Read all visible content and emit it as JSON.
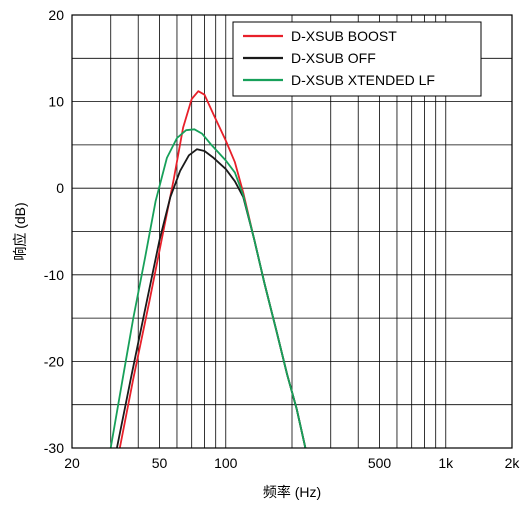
{
  "chart_data": {
    "type": "line",
    "xlabel": "频率 (Hz)",
    "ylabel": "响应 (dB)",
    "x_scale": "log",
    "xlim": [
      20,
      2000
    ],
    "ylim": [
      -30,
      20
    ],
    "grid": true,
    "legend_position": "top-right",
    "x_ticks": [
      {
        "value": 20,
        "label": "20"
      },
      {
        "value": 50,
        "label": "50"
      },
      {
        "value": 100,
        "label": "100"
      },
      {
        "value": 500,
        "label": "500"
      },
      {
        "value": 1000,
        "label": "1k"
      },
      {
        "value": 2000,
        "label": "2k"
      }
    ],
    "y_ticks": [
      {
        "value": 20,
        "label": "20"
      },
      {
        "value": 10,
        "label": "10"
      },
      {
        "value": 0,
        "label": "0"
      },
      {
        "value": -10,
        "label": "-10"
      },
      {
        "value": -20,
        "label": "-20"
      },
      {
        "value": -30,
        "label": "-30"
      }
    ],
    "series": [
      {
        "name": "D-XSUB BOOST",
        "color": "#e8202a",
        "points": [
          [
            33,
            -30
          ],
          [
            38,
            -22
          ],
          [
            45,
            -13
          ],
          [
            52,
            -5
          ],
          [
            58,
            1
          ],
          [
            64,
            7
          ],
          [
            70,
            10.3
          ],
          [
            75,
            11.2
          ],
          [
            80,
            10.8
          ],
          [
            88,
            8.5
          ],
          [
            100,
            5.5
          ],
          [
            110,
            3
          ],
          [
            120,
            -0.5
          ],
          [
            135,
            -6
          ],
          [
            150,
            -11
          ],
          [
            170,
            -16.5
          ],
          [
            190,
            -21.5
          ],
          [
            210,
            -25.5
          ],
          [
            230,
            -30
          ]
        ]
      },
      {
        "name": "D-XSUB OFF",
        "color": "#1a1a1a",
        "points": [
          [
            32,
            -30
          ],
          [
            37,
            -22
          ],
          [
            43,
            -14
          ],
          [
            50,
            -6
          ],
          [
            56,
            -1
          ],
          [
            62,
            2
          ],
          [
            68,
            3.8
          ],
          [
            74,
            4.5
          ],
          [
            80,
            4.3
          ],
          [
            88,
            3.5
          ],
          [
            100,
            2.2
          ],
          [
            110,
            0.8
          ],
          [
            120,
            -1
          ],
          [
            135,
            -6
          ],
          [
            150,
            -11
          ],
          [
            170,
            -16.5
          ],
          [
            190,
            -21.5
          ],
          [
            210,
            -25.5
          ],
          [
            230,
            -30
          ]
        ]
      },
      {
        "name": "D-XSUB XTENDED LF",
        "color": "#17a05a",
        "points": [
          [
            30,
            -30
          ],
          [
            34,
            -22
          ],
          [
            38,
            -15
          ],
          [
            43,
            -8
          ],
          [
            48,
            -1.5
          ],
          [
            54,
            3.5
          ],
          [
            60,
            5.8
          ],
          [
            66,
            6.7
          ],
          [
            72,
            6.8
          ],
          [
            78,
            6.3
          ],
          [
            86,
            5
          ],
          [
            100,
            3.2
          ],
          [
            110,
            1.8
          ],
          [
            120,
            -0.8
          ],
          [
            135,
            -6
          ],
          [
            150,
            -11
          ],
          [
            170,
            -16.5
          ],
          [
            190,
            -21.5
          ],
          [
            210,
            -25.5
          ],
          [
            230,
            -30
          ]
        ]
      }
    ]
  }
}
